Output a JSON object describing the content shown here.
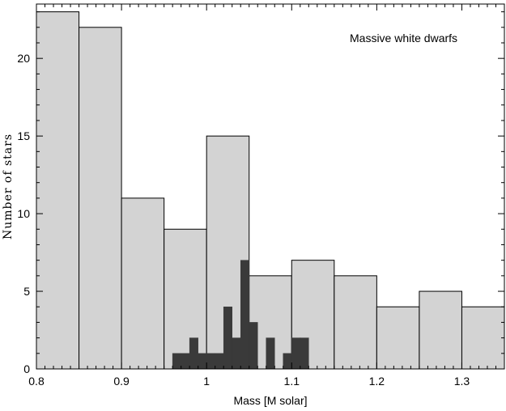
{
  "chart_data": {
    "type": "bar",
    "annotation": "Massive white dwarfs",
    "xlabel": "Mass [M solar]",
    "ylabel": "Number of stars",
    "xlim": [
      0.8,
      1.35
    ],
    "ylim": [
      0,
      23.5
    ],
    "xticks": [
      "0.8",
      "0.9",
      "1",
      "1.1",
      "1.2",
      "1.3"
    ],
    "yticks": [
      "0",
      "5",
      "10",
      "15",
      "20"
    ],
    "grid": false,
    "colors": {
      "light_series": "#d3d3d3",
      "dark_series": "#3a3a3a",
      "edge": "#000000"
    },
    "series": [
      {
        "style": "light",
        "bin_edges": [
          0.8,
          0.85,
          0.9,
          0.95,
          1.0,
          1.05,
          1.1,
          1.15,
          1.2,
          1.25,
          1.3,
          1.35
        ],
        "counts": [
          23,
          22,
          11,
          9,
          15,
          6,
          7,
          6,
          4,
          5,
          4
        ]
      },
      {
        "style": "dark",
        "bin_edges": [
          0.96,
          0.97,
          0.98,
          0.99,
          1.0,
          1.01,
          1.02,
          1.03,
          1.04,
          1.05,
          1.06,
          1.07,
          1.08,
          1.09,
          1.1,
          1.11,
          1.12
        ],
        "counts": [
          1,
          1,
          2,
          1,
          1,
          1,
          4,
          2,
          7,
          3,
          0,
          2,
          0,
          1,
          2,
          2
        ]
      }
    ]
  }
}
